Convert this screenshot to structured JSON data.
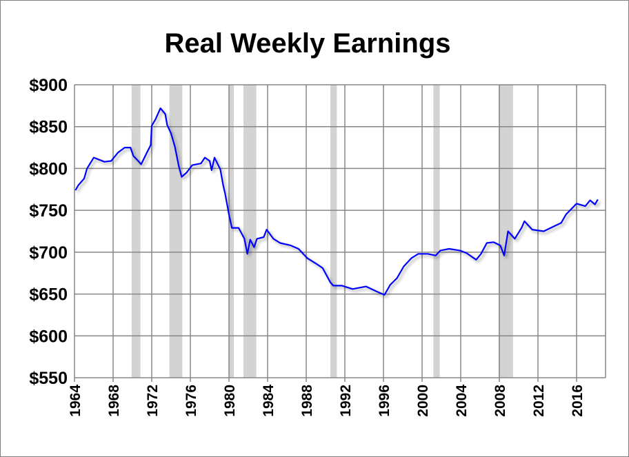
{
  "chart_data": {
    "type": "line",
    "title": "Real Weekly Earnings",
    "xlabel": "",
    "ylabel": "",
    "xlim": [
      1964,
      2019
    ],
    "ylim": [
      550,
      900
    ],
    "grid": true,
    "x_ticks": [
      1964,
      1968,
      1972,
      1976,
      1980,
      1984,
      1988,
      1992,
      1996,
      2000,
      2004,
      2008,
      2012,
      2016
    ],
    "x_tick_labels": [
      "1964",
      "1968",
      "1972",
      "1976",
      "1980",
      "1984",
      "1988",
      "1992",
      "1996",
      "2000",
      "2004",
      "2008",
      "2012",
      "2016"
    ],
    "y_ticks": [
      550,
      600,
      650,
      700,
      750,
      800,
      850,
      900
    ],
    "y_tick_labels": [
      "$550",
      "$600",
      "$650",
      "$700",
      "$750",
      "$800",
      "$850",
      "$900"
    ],
    "line_color": "#0000ff",
    "shade_color": "#d3d3d3",
    "shaded_periods": [
      [
        1969.92,
        1970.83
      ],
      [
        1973.83,
        1975.17
      ],
      [
        1980.0,
        1980.5
      ],
      [
        1981.5,
        1982.83
      ],
      [
        1990.5,
        1991.17
      ],
      [
        2001.17,
        2001.83
      ],
      [
        2007.92,
        2009.42
      ]
    ],
    "x": [
      1964.1,
      1964.4,
      1965.0,
      1965.3,
      1966.0,
      1967.1,
      1967.8,
      1968.5,
      1969.2,
      1969.8,
      1970.1,
      1970.6,
      1970.9,
      1971.5,
      1971.9,
      1972.0,
      1972.4,
      1972.9,
      1973.4,
      1973.6,
      1974.0,
      1974.4,
      1974.8,
      1975.1,
      1975.6,
      1976.2,
      1977.1,
      1977.5,
      1978.0,
      1978.2,
      1978.5,
      1979.1,
      1979.4,
      1979.6,
      1980.0,
      1980.3,
      1981.0,
      1981.6,
      1981.9,
      1982.2,
      1982.6,
      1982.9,
      1983.6,
      1983.9,
      1984.6,
      1985.3,
      1986.4,
      1987.2,
      1988.1,
      1989.2,
      1989.7,
      1990.5,
      1990.8,
      1991.7,
      1992.8,
      1994.2,
      1995.3,
      1996.1,
      1996.7,
      1997.4,
      1998.1,
      1998.9,
      1999.6,
      2000.6,
      2001.4,
      2001.9,
      2002.8,
      2003.9,
      2004.6,
      2005.6,
      2006.1,
      2006.7,
      2007.4,
      2008.1,
      2008.5,
      2008.9,
      2009.6,
      2010.3,
      2010.6,
      2011.4,
      2012.6,
      2013.5,
      2014.4,
      2014.9,
      2016.0,
      2016.9,
      2017.4,
      2017.9,
      2018.2
    ],
    "y": [
      774,
      780,
      788,
      800,
      813,
      808,
      809,
      819,
      825,
      825,
      815,
      809,
      805,
      819,
      828,
      851,
      859,
      872,
      865,
      852,
      842,
      826,
      803,
      790,
      795,
      804,
      806,
      813,
      809,
      798,
      813,
      799,
      780,
      770,
      745,
      729,
      729,
      716,
      698,
      715,
      706,
      716,
      718,
      727,
      716,
      711,
      708,
      704,
      693,
      685,
      681,
      664,
      660,
      660,
      656,
      659,
      653,
      649,
      661,
      669,
      683,
      693,
      698,
      698,
      696,
      702,
      704,
      702,
      699,
      691,
      698,
      711,
      712,
      708,
      696,
      725,
      716,
      729,
      737,
      727,
      725,
      730,
      735,
      745,
      758,
      755,
      762,
      757,
      763
    ]
  }
}
